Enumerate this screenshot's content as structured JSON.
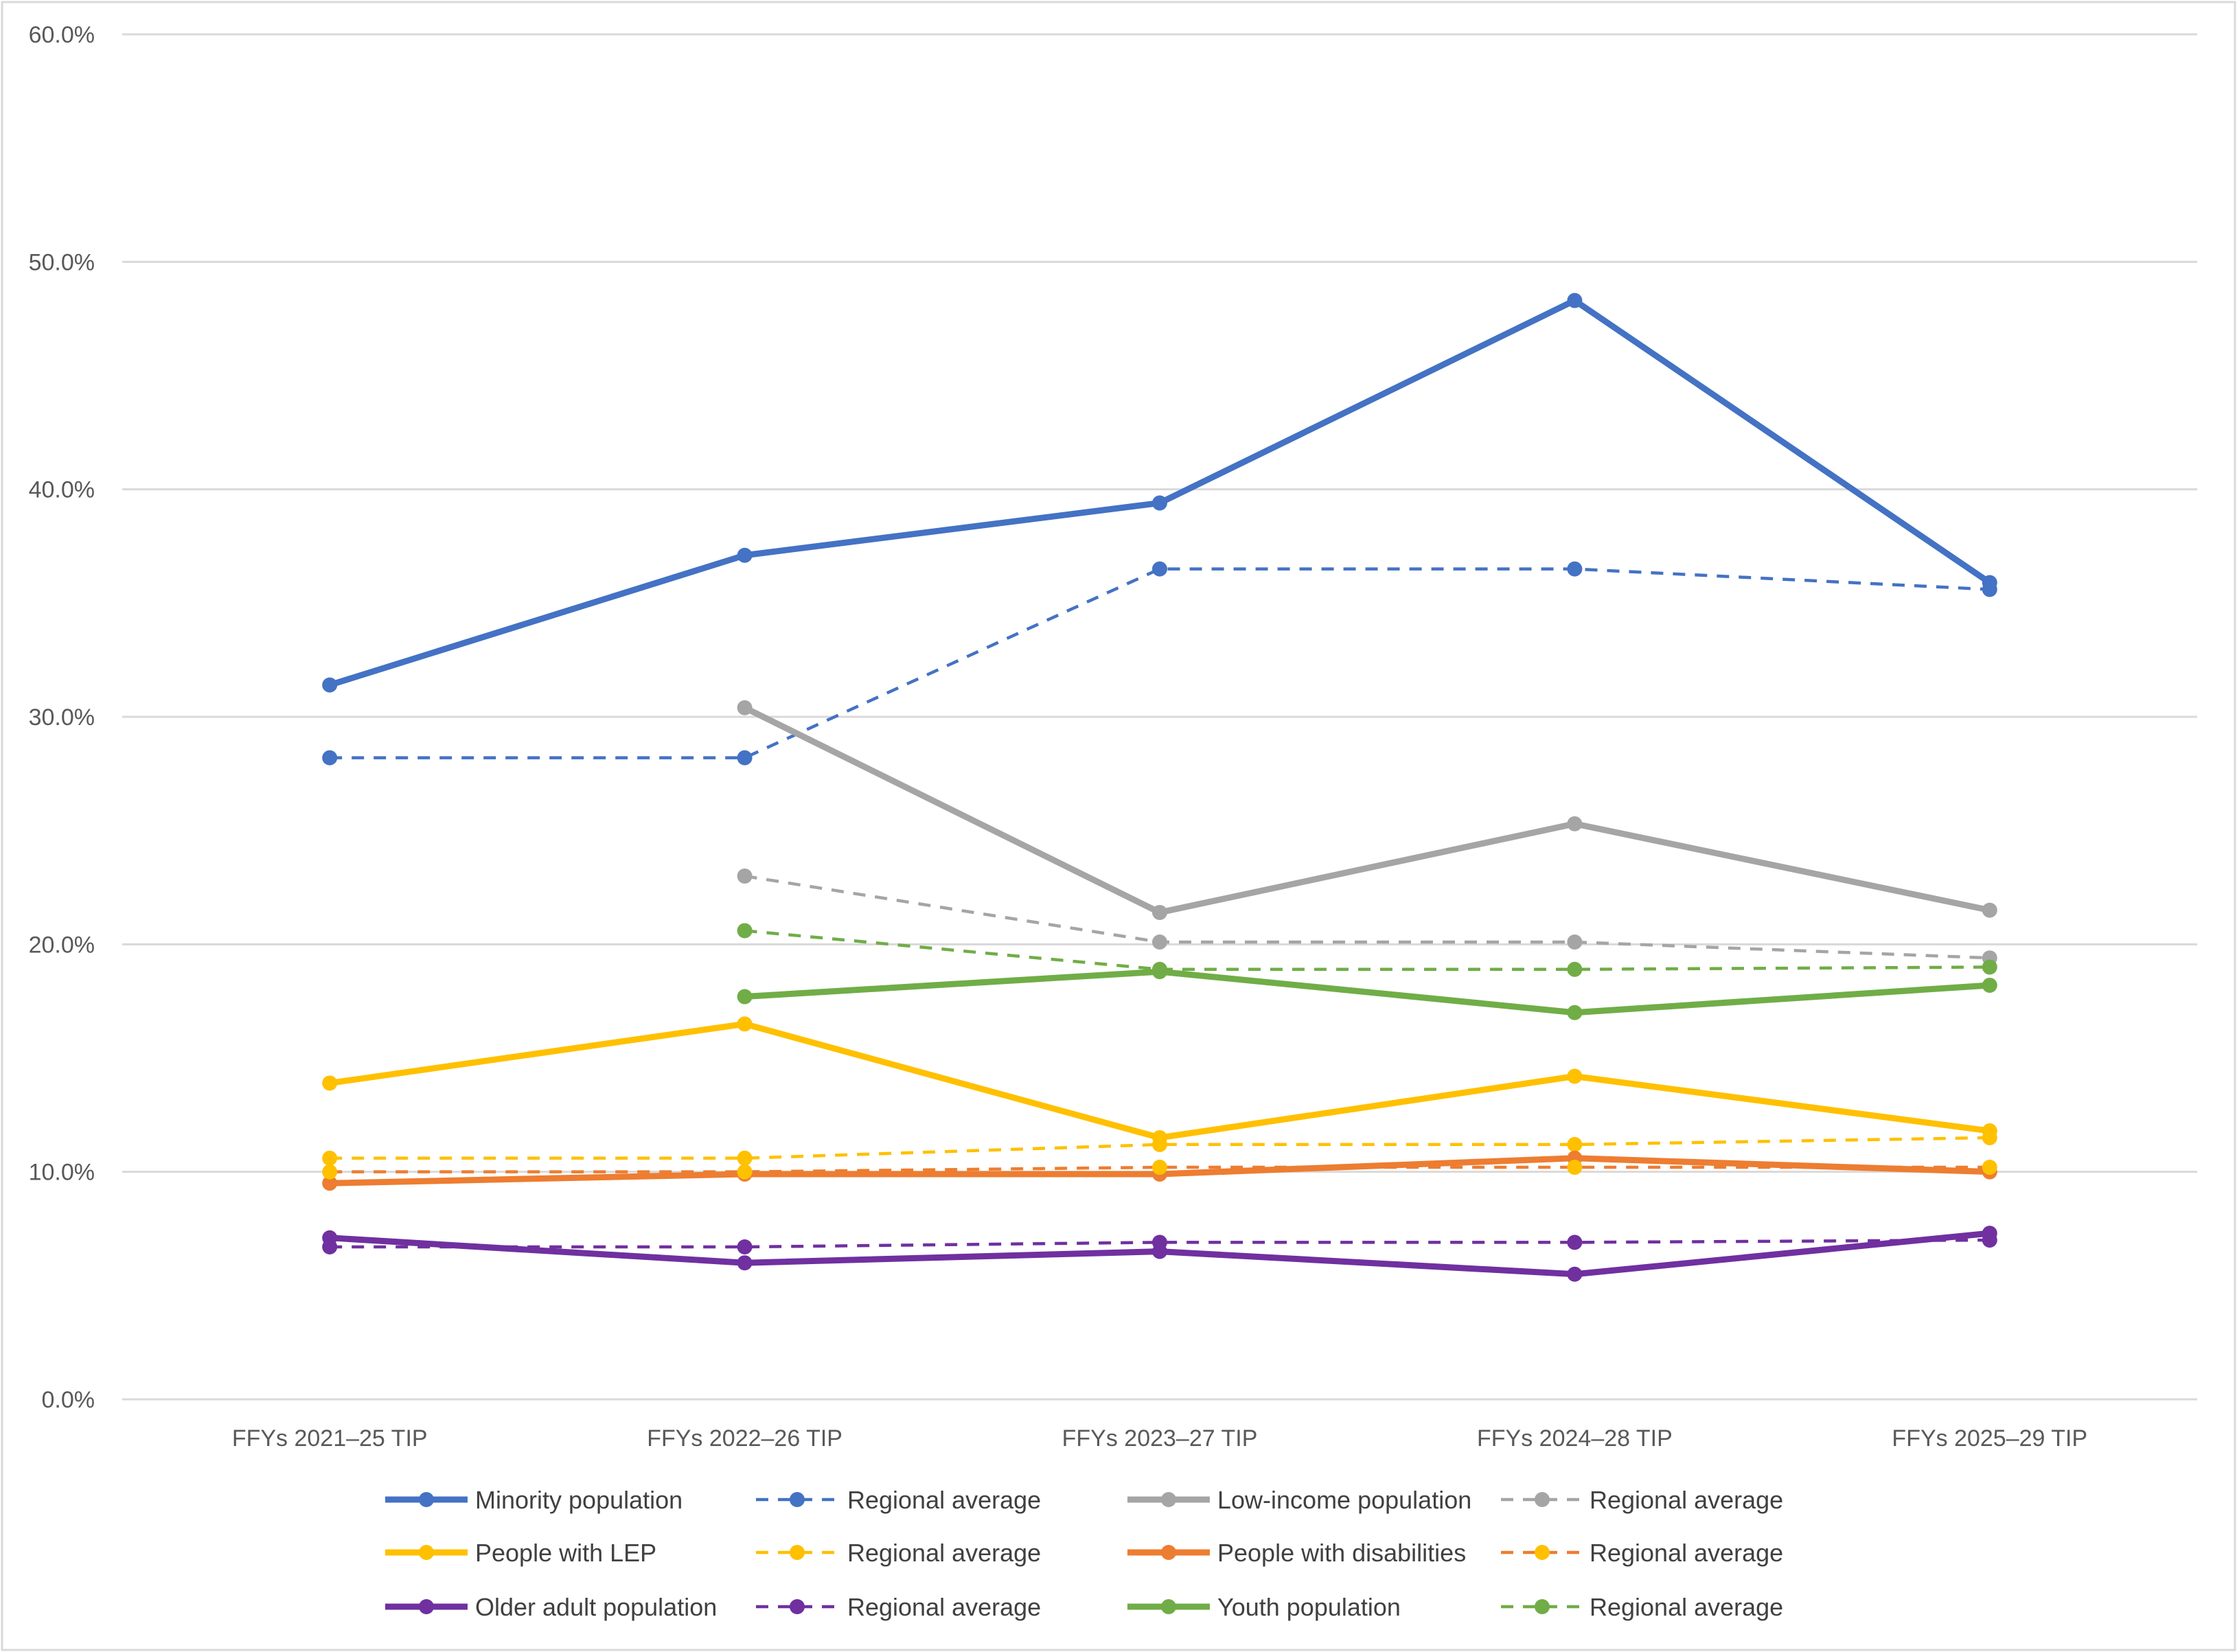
{
  "chart_data": {
    "type": "line",
    "title": "",
    "xlabel": "",
    "ylabel": "",
    "ylim": [
      0,
      60
    ],
    "ytick_step": 10,
    "ytick_labels": [
      "0.0%",
      "10.0%",
      "20.0%",
      "30.0%",
      "40.0%",
      "50.0%",
      "60.0%"
    ],
    "grid": true,
    "legend_placement": "bottom",
    "categories": [
      "FFYs 2021–25 TIP",
      "FFYs 2022–26 TIP",
      "FFYs 2023–27 TIP",
      "FFYs 2024–28 TIP",
      "FFYs 2025–29 TIP"
    ],
    "series": [
      {
        "name": "Minority population",
        "color": "#4472C4",
        "marker_color": "#4472C4",
        "style": "solid",
        "values": [
          31.4,
          37.1,
          39.4,
          48.3,
          35.9
        ]
      },
      {
        "name": "Regional average",
        "color": "#4472C4",
        "marker_color": "#4472C4",
        "style": "dashed",
        "values": [
          28.2,
          28.2,
          36.5,
          36.5,
          35.6
        ]
      },
      {
        "name": "Low-income population",
        "color": "#A5A5A5",
        "marker_color": "#A5A5A5",
        "style": "solid",
        "values": [
          null,
          30.4,
          21.4,
          25.3,
          21.5
        ]
      },
      {
        "name": "Regional average",
        "color": "#A5A5A5",
        "marker_color": "#A5A5A5",
        "style": "dashed",
        "values": [
          null,
          23.0,
          20.1,
          20.1,
          19.4
        ]
      },
      {
        "name": "People with LEP",
        "color": "#FFC000",
        "marker_color": "#FFC000",
        "style": "solid",
        "values": [
          13.9,
          16.5,
          11.5,
          14.2,
          11.8
        ]
      },
      {
        "name": "Regional average",
        "color": "#FFC000",
        "marker_color": "#FFC000",
        "style": "dashed",
        "values": [
          10.6,
          10.6,
          11.2,
          11.2,
          11.5
        ]
      },
      {
        "name": "People with disabilities",
        "color": "#ED7D31",
        "marker_color": "#ED7D31",
        "style": "solid",
        "values": [
          9.5,
          9.9,
          9.9,
          10.6,
          10.0
        ]
      },
      {
        "name": "Regional average",
        "color": "#ED7D31",
        "marker_color": "#FFC000",
        "style": "dashed",
        "values": [
          10.0,
          10.0,
          10.2,
          10.2,
          10.2
        ]
      },
      {
        "name": "Older adult population",
        "color": "#7030A0",
        "marker_color": "#7030A0",
        "style": "solid",
        "values": [
          7.1,
          6.0,
          6.5,
          5.5,
          7.3
        ]
      },
      {
        "name": "Regional average",
        "color": "#7030A0",
        "marker_color": "#7030A0",
        "style": "dashed",
        "values": [
          6.7,
          6.7,
          6.9,
          6.9,
          7.0
        ]
      },
      {
        "name": "Youth population",
        "color": "#70AD47",
        "marker_color": "#70AD47",
        "style": "solid",
        "values": [
          null,
          17.7,
          18.8,
          17.0,
          18.2
        ]
      },
      {
        "name": "Regional average",
        "color": "#70AD47",
        "marker_color": "#70AD47",
        "style": "dashed",
        "values": [
          null,
          20.6,
          18.9,
          18.9,
          19.0
        ]
      }
    ]
  }
}
